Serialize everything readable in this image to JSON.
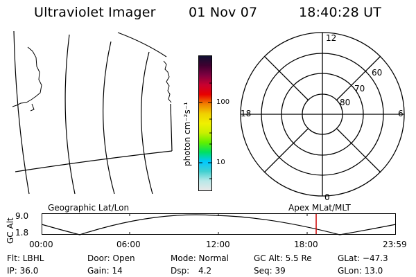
{
  "header": {
    "instrument": "Ultraviolet Imager",
    "date": "01 Nov 07",
    "time": "18:40:28 UT"
  },
  "colorbar": {
    "unit_label": "photon cm⁻²s⁻¹",
    "tick_100": "100",
    "tick_10": "10",
    "colors": [
      "#e8e8e8",
      "#b8e8e8",
      "#40d0d0",
      "#00c8ff",
      "#00e060",
      "#60f000",
      "#c8f000",
      "#f0f000",
      "#f0d000",
      "#f08000",
      "#e80000",
      "#c80030",
      "#800040",
      "#400030",
      "#101030"
    ]
  },
  "polar_plot": {
    "labels": {
      "top": "12",
      "bottom": "0",
      "left": "18",
      "right": "6"
    },
    "circle_labels": [
      "60",
      "70",
      "80"
    ]
  },
  "timeline": {
    "left_label": "Geographic Lat/Lon",
    "right_label": "Apex MLat/MLT",
    "axis_label": "GC Alt",
    "y_max": "9.0",
    "y_min": "1.8",
    "x_ticks": [
      "00:00",
      "06:00",
      "12:00",
      "18:00",
      "23:59"
    ],
    "marker_color": "#cc0000"
  },
  "status": {
    "flt": "Flt: LBHL",
    "door": "Door: Open",
    "mode": "Mode: Normal",
    "gc_alt": "GC Alt: 5.5 Re",
    "glat": "GLat: −47.3",
    "ip": "IP: 36.0",
    "gain": "Gain: 14",
    "dsp_label": "Dsp:",
    "dsp_value": "4.2",
    "seq": "Seq: 39",
    "glon": "GLon: 13.0"
  }
}
